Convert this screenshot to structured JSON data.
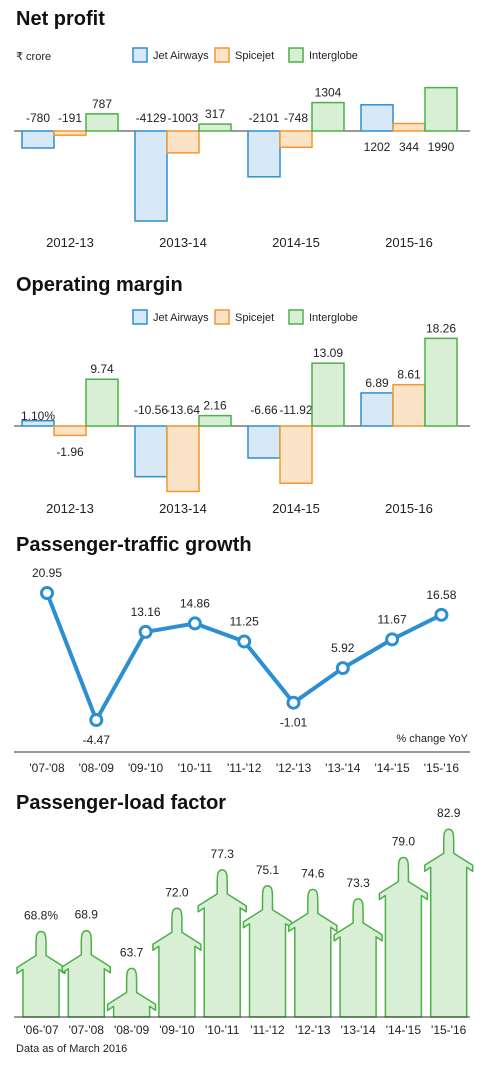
{
  "colors": {
    "jet_fill": "#d7e8f6",
    "jet_stroke": "#2c8fd2",
    "spice_fill": "#fbe3c8",
    "spice_stroke": "#f0982d",
    "inter_fill": "#d8efd5",
    "inter_stroke": "#4cb048",
    "line": "#2c8fd2",
    "plane_fill": "#d8efd5",
    "plane_stroke": "#4cb048",
    "axis": "#333333",
    "grid": "#999999"
  },
  "chart_data": [
    {
      "type": "bar",
      "title": "Net profit",
      "unit_label": "₹ crore",
      "categories": [
        "2012-13",
        "2013-14",
        "2014-15",
        "2015-16"
      ],
      "series": [
        {
          "name": "Jet Airways",
          "values": [
            -780,
            -4129,
            -2101,
            1202
          ],
          "labels": [
            "-780",
            "-4129",
            "-2101",
            "1202"
          ]
        },
        {
          "name": "Spicejet",
          "values": [
            -191,
            -1003,
            -748,
            344
          ],
          "labels": [
            "-191",
            "-1003",
            "-748",
            "344"
          ]
        },
        {
          "name": "Interglobe",
          "values": [
            787,
            317,
            1304,
            1990
          ],
          "labels": [
            "787",
            "317",
            "1304",
            "1990"
          ]
        }
      ]
    },
    {
      "type": "bar",
      "title": "Operating margin",
      "categories": [
        "2012-13",
        "2013-14",
        "2014-15",
        "2015-16"
      ],
      "series": [
        {
          "name": "Jet Airways",
          "values": [
            1.1,
            -10.56,
            -6.66,
            6.89
          ],
          "labels": [
            "1.10%",
            "-10.56",
            "-6.66",
            "6.89"
          ]
        },
        {
          "name": "Spicejet",
          "values": [
            -1.96,
            -13.64,
            -11.92,
            8.61
          ],
          "labels": [
            "-1.96",
            "-13.64",
            "-11.92",
            "8.61"
          ]
        },
        {
          "name": "Interglobe",
          "values": [
            9.74,
            2.16,
            13.09,
            18.26
          ],
          "labels": [
            "9.74",
            "2.16",
            "13.09",
            "18.26"
          ]
        }
      ]
    },
    {
      "type": "line",
      "title": "Passenger-traffic growth",
      "note": "% change YoY",
      "categories": [
        "'07-'08",
        "'08-'09",
        "'09-'10",
        "'10-'11",
        "'11-'12",
        "'12-'13",
        "'13-'14",
        "'14-'15",
        "'15-'16"
      ],
      "values": [
        20.95,
        -4.47,
        13.16,
        14.86,
        11.25,
        -1.01,
        5.92,
        11.67,
        16.58
      ],
      "labels": [
        "20.95",
        "-4.47",
        "13.16",
        "14.86",
        "11.25",
        "-1.01",
        "5.92",
        "11.67",
        "16.58"
      ]
    },
    {
      "type": "bar",
      "title": "Passenger-load factor",
      "source": "Data as of March 2016",
      "categories": [
        "'06-'07",
        "'07-'08",
        "'08-'09",
        "'09-'10",
        "'10-'11",
        "'11-'12",
        "'12-'13",
        "'13-'14",
        "'14-'15",
        "'15-'16"
      ],
      "values": [
        68.8,
        68.9,
        63.7,
        72.0,
        77.3,
        75.1,
        74.6,
        73.3,
        79.0,
        82.9
      ],
      "labels": [
        "68.8%",
        "68.9",
        "63.7",
        "72.0",
        "77.3",
        "75.1",
        "74.6",
        "73.3",
        "79.0",
        "82.9"
      ]
    }
  ]
}
